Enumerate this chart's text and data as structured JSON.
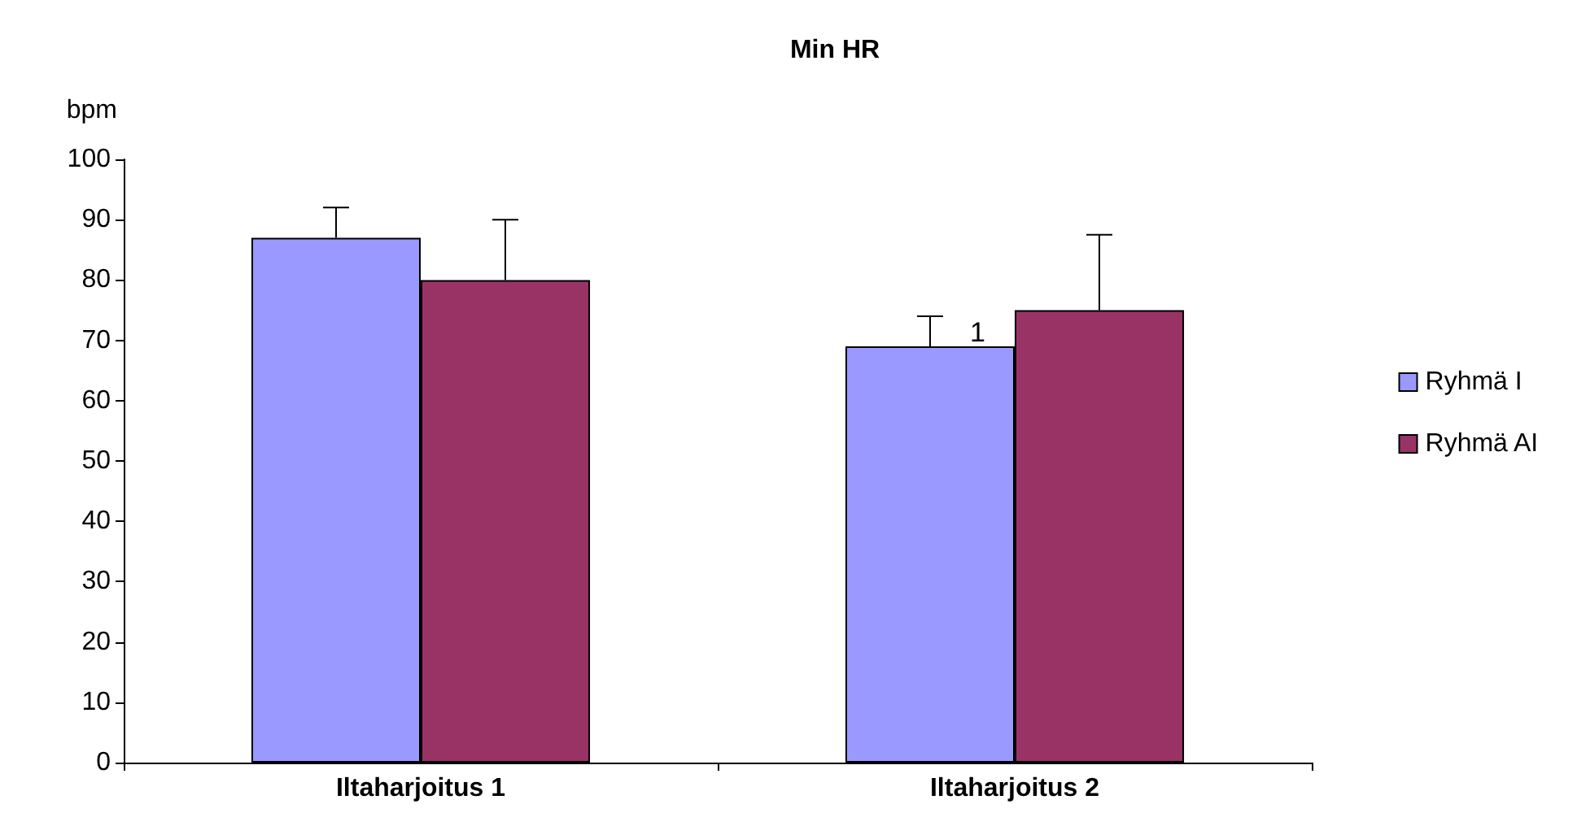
{
  "chart_data": {
    "type": "bar",
    "title": "Min HR",
    "ylabel": "bpm",
    "categories": [
      "Iltaharjoitus 1",
      "Iltaharjoitus 2"
    ],
    "series": [
      {
        "name": "Ryhmä I",
        "color": "#9999ff",
        "values": [
          87,
          69
        ],
        "errors": [
          [
            87,
            92
          ],
          [
            69,
            74
          ]
        ]
      },
      {
        "name": "Ryhmä AI",
        "color": "#993366",
        "values": [
          80,
          75
        ],
        "errors": [
          [
            80,
            90
          ],
          [
            75,
            87.5
          ]
        ]
      }
    ],
    "ylim": [
      0,
      100
    ],
    "yticks": [
      0,
      10,
      20,
      30,
      40,
      50,
      60,
      70,
      80,
      90,
      100
    ],
    "grid": false,
    "legend": "right",
    "annotations": [
      "1"
    ]
  }
}
